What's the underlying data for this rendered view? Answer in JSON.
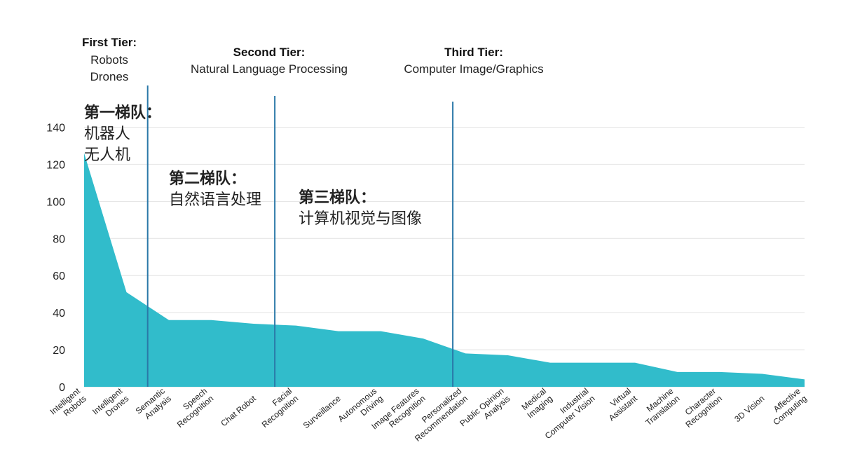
{
  "chart_data": {
    "type": "area",
    "categories": [
      [
        "Intelligent",
        "Robots"
      ],
      [
        "Intelligent",
        "Drones"
      ],
      [
        "Semantic",
        "Analysis"
      ],
      [
        "Speech",
        "Recognition"
      ],
      [
        "Chat Robot"
      ],
      [
        "Facial",
        "Recognition"
      ],
      [
        "Surveillance"
      ],
      [
        "Autonomous",
        "Driving"
      ],
      [
        "Image Features",
        "Recognition"
      ],
      [
        "Personalized",
        "Recommendation"
      ],
      [
        "Public Opinion",
        "Analysis"
      ],
      [
        "Medical",
        "Imaging"
      ],
      [
        "Industrial",
        "Computer Vision"
      ],
      [
        "Virtual",
        "Assistant"
      ],
      [
        "Machine",
        "Translation"
      ],
      [
        "Character",
        "Recognition"
      ],
      [
        "3D Vision"
      ],
      [
        "Affective",
        "Computing"
      ]
    ],
    "values": [
      126,
      51,
      36,
      36,
      34,
      33,
      30,
      30,
      26,
      18,
      17,
      13,
      13,
      13,
      8,
      8,
      7,
      4
    ],
    "y_ticks": [
      "0",
      "20",
      "40",
      "60",
      "80",
      "100",
      "120",
      "140"
    ],
    "ylim": [
      0,
      150
    ],
    "grid": true,
    "fill_color": "#31bccb",
    "line_color": "#2a78a8",
    "tier_dividers": [
      1.5,
      4.5,
      8.7
    ],
    "tiers": [
      {
        "title": "First Tier:",
        "lines": [
          "Robots",
          "Drones"
        ],
        "cn_title": "第一梯队：",
        "cn_lines": [
          "机器人",
          "无人机"
        ]
      },
      {
        "title": "Second Tier:",
        "lines": [
          "Natural Language Processing"
        ],
        "cn_title": "第二梯队：",
        "cn_lines": [
          "自然语言处理"
        ]
      },
      {
        "title": "Third Tier:",
        "lines": [
          "Computer Image/Graphics"
        ],
        "cn_title": "第三梯队：",
        "cn_lines": [
          "计算机视觉与图像"
        ]
      }
    ]
  }
}
